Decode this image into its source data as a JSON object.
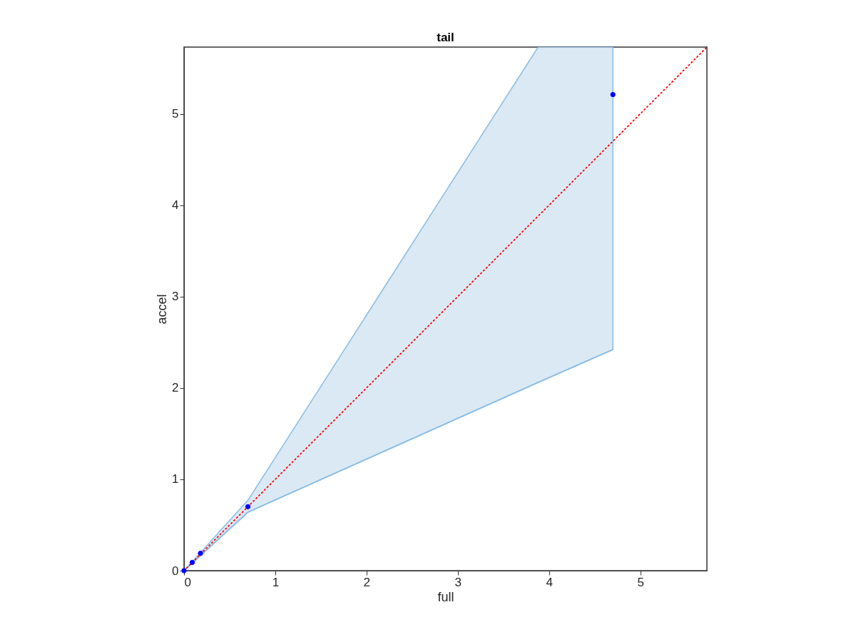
{
  "chart_data": {
    "type": "scatter",
    "title": "tail",
    "xlabel": "full",
    "ylabel": "accel",
    "xlim": [
      0,
      5.73
    ],
    "ylim": [
      0,
      5.73
    ],
    "xticks": [
      0,
      1,
      2,
      3,
      4,
      5
    ],
    "yticks": [
      0,
      1,
      2,
      3,
      4,
      5
    ],
    "grid": false,
    "series": [
      {
        "type": "line",
        "color": "#88bde6",
        "x": [
          0,
          0.7,
          3.88,
          4.7
        ],
        "values": [
          0,
          0.64,
          2.06,
          2.42
        ],
        "lower": [
          0,
          0.64,
          2.06,
          2.42
        ],
        "upper": [
          0,
          0.77,
          5.73,
          5.73
        ]
      },
      {
        "type": "line",
        "color": "#ff0000",
        "line_style": "dotted",
        "x": [
          0,
          5.73
        ],
        "values": [
          0,
          5.73
        ]
      },
      {
        "color": "#0000ff",
        "marker": "circle",
        "x": [
          0,
          0.09,
          0.18,
          0.7,
          4.7
        ],
        "values": [
          0,
          0.09,
          0.19,
          0.7,
          5.21
        ]
      }
    ]
  }
}
